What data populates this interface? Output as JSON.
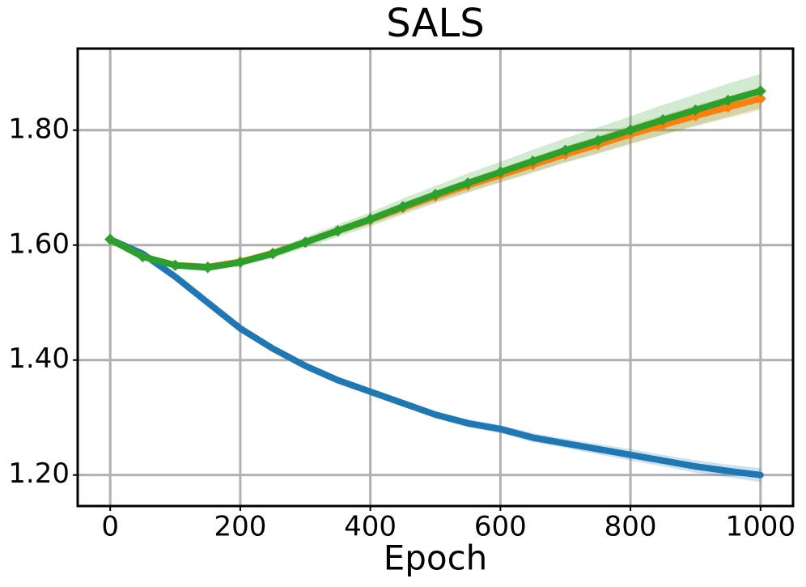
{
  "chart_data": {
    "type": "line",
    "title": "SALS",
    "xlabel": "Epoch",
    "x": [
      0,
      50,
      100,
      150,
      200,
      250,
      300,
      350,
      400,
      450,
      500,
      550,
      600,
      650,
      700,
      750,
      800,
      850,
      900,
      950,
      1000
    ],
    "series": [
      {
        "color": "#1f77b4",
        "marker": "none",
        "values": [
          1.61,
          1.585,
          1.545,
          1.5,
          1.455,
          1.42,
          1.39,
          1.365,
          1.345,
          1.325,
          1.305,
          1.29,
          1.28,
          1.265,
          1.255,
          1.245,
          1.235,
          1.225,
          1.215,
          1.207,
          1.2
        ],
        "lower": [
          1.61,
          1.584,
          1.544,
          1.498,
          1.453,
          1.417,
          1.386,
          1.361,
          1.34,
          1.32,
          1.299,
          1.283,
          1.273,
          1.257,
          1.247,
          1.236,
          1.225,
          1.215,
          1.204,
          1.196,
          1.188
        ],
        "upper": [
          1.61,
          1.586,
          1.546,
          1.502,
          1.457,
          1.423,
          1.394,
          1.369,
          1.35,
          1.33,
          1.311,
          1.297,
          1.287,
          1.273,
          1.263,
          1.254,
          1.245,
          1.235,
          1.226,
          1.218,
          1.212
        ]
      },
      {
        "color": "#ff7f0e",
        "marker": "diamond",
        "values": [
          1.61,
          1.58,
          1.565,
          1.562,
          1.571,
          1.586,
          1.605,
          1.625,
          1.644,
          1.665,
          1.685,
          1.704,
          1.722,
          1.74,
          1.758,
          1.775,
          1.793,
          1.809,
          1.825,
          1.84,
          1.855
        ],
        "lower": [
          1.61,
          1.579,
          1.563,
          1.559,
          1.567,
          1.581,
          1.599,
          1.618,
          1.636,
          1.656,
          1.675,
          1.693,
          1.71,
          1.727,
          1.744,
          1.76,
          1.777,
          1.792,
          1.807,
          1.821,
          1.835
        ],
        "upper": [
          1.61,
          1.581,
          1.567,
          1.565,
          1.575,
          1.591,
          1.611,
          1.632,
          1.652,
          1.674,
          1.695,
          1.715,
          1.734,
          1.753,
          1.772,
          1.79,
          1.809,
          1.826,
          1.843,
          1.859,
          1.875
        ]
      },
      {
        "color": "#2ca02c",
        "marker": "diamond",
        "values": [
          1.61,
          1.58,
          1.565,
          1.561,
          1.57,
          1.585,
          1.605,
          1.625,
          1.645,
          1.667,
          1.688,
          1.708,
          1.727,
          1.746,
          1.765,
          1.782,
          1.8,
          1.818,
          1.835,
          1.852,
          1.868
        ],
        "lower": [
          1.61,
          1.578,
          1.562,
          1.556,
          1.564,
          1.577,
          1.596,
          1.614,
          1.633,
          1.653,
          1.673,
          1.691,
          1.709,
          1.726,
          1.744,
          1.759,
          1.776,
          1.792,
          1.808,
          1.823,
          1.838
        ],
        "upper": [
          1.61,
          1.582,
          1.568,
          1.566,
          1.576,
          1.593,
          1.614,
          1.636,
          1.657,
          1.681,
          1.703,
          1.725,
          1.745,
          1.766,
          1.786,
          1.805,
          1.824,
          1.844,
          1.862,
          1.881,
          1.898
        ]
      }
    ],
    "xlim": [
      -50,
      1050
    ],
    "xticks": [
      0,
      200,
      400,
      600,
      800,
      1000
    ],
    "ylim": [
      1.146,
      1.942
    ],
    "yticks": [
      {
        "value": 1.2,
        "label": "1.20"
      },
      {
        "value": 1.4,
        "label": "1.40"
      },
      {
        "value": 1.6,
        "label": "1.60"
      },
      {
        "value": 1.8,
        "label": "1.80"
      }
    ],
    "grid": true
  }
}
